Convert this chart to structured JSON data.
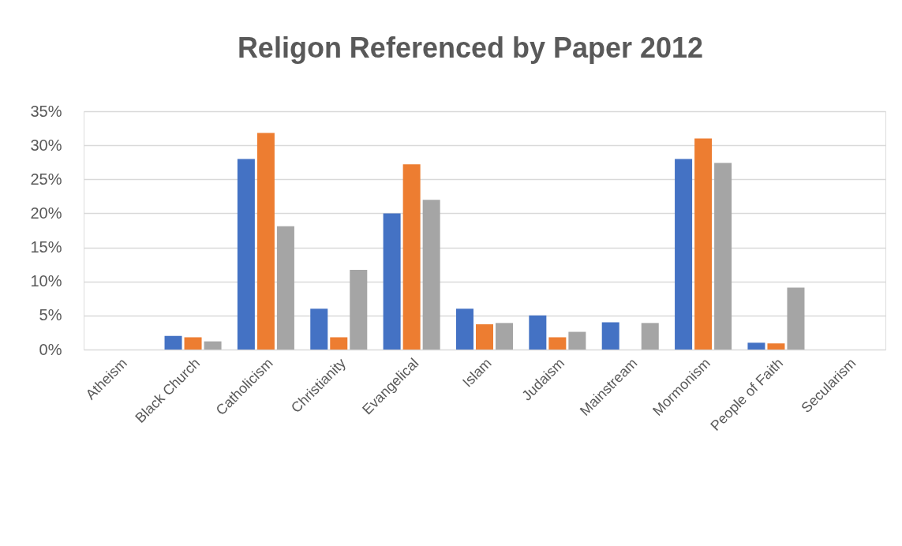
{
  "chart_data": {
    "type": "bar",
    "title": "Religon Referenced by Paper 2012",
    "categories": [
      "Atheism",
      "Black Church",
      "Catholicism",
      "Christianity",
      "Evangelical",
      "Islam",
      "Judaism",
      "Mainstream",
      "Mormonism",
      "People of Faith",
      "Secularism"
    ],
    "series": [
      {
        "color": "#4472c4",
        "values": [
          0,
          2,
          28,
          6,
          20,
          6,
          5,
          4,
          28,
          1,
          0
        ]
      },
      {
        "color": "#ed7d31",
        "values": [
          0,
          1.8,
          31.8,
          1.8,
          27.2,
          3.7,
          1.8,
          0,
          31,
          0.9,
          0
        ]
      },
      {
        "color": "#a5a5a5",
        "values": [
          0,
          1.2,
          18.1,
          11.7,
          22,
          3.9,
          2.6,
          3.9,
          27.4,
          9.1,
          0
        ]
      }
    ],
    "ylim": [
      0,
      35
    ],
    "yticks": [
      {
        "value": 0,
        "label": "0%"
      },
      {
        "value": 5,
        "label": "5%"
      },
      {
        "value": 10,
        "label": "10%"
      },
      {
        "value": 15,
        "label": "15%"
      },
      {
        "value": 20,
        "label": "20%"
      },
      {
        "value": 25,
        "label": "25%"
      },
      {
        "value": 30,
        "label": "30%"
      },
      {
        "value": 35,
        "label": "35%"
      }
    ],
    "grid": "y"
  }
}
